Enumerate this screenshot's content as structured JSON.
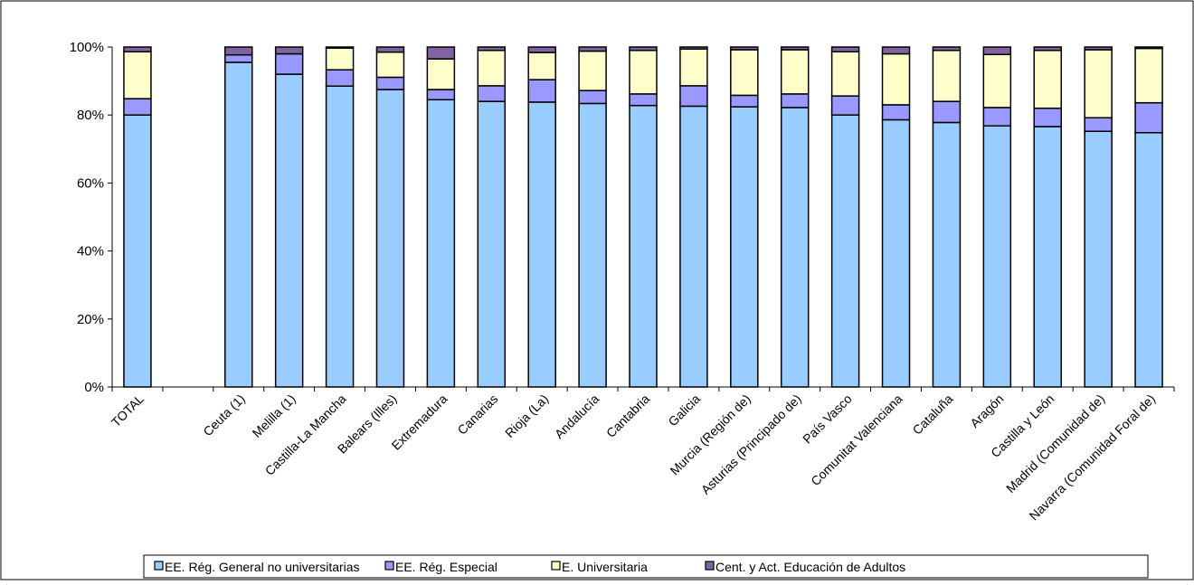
{
  "chart_data": {
    "type": "bar",
    "stacked": true,
    "percent_stacked": true,
    "categories": [
      "TOTAL",
      "",
      "Ceuta (1)",
      "Melilla (1)",
      "Castilla-La Mancha",
      "Balears (Illes)",
      "Extremadura",
      "Canarias",
      "Rioja (La)",
      "Andalucía",
      "Cantabria",
      "Galicia",
      "Murcia (Región de)",
      "Asturias (Principado de)",
      "País Vasco",
      "Comunitat Valenciana",
      "Cataluña",
      "Aragón",
      "Castilla y León",
      "Madrid (Comunidad de)",
      "Navarra (Comunidad Foral de)"
    ],
    "series": [
      {
        "name": "EE. Rég. General no universitarias",
        "color": "#99ccff",
        "values": [
          80,
          null,
          95.5,
          92,
          88.5,
          87.5,
          84.5,
          84,
          83.8,
          83.4,
          82.8,
          82.6,
          82.4,
          82.2,
          80,
          78.6,
          77.8,
          76.8,
          76.6,
          75.2,
          74.8
        ]
      },
      {
        "name": "EE. Rég. Especial",
        "color": "#9999ff",
        "values": [
          4.8,
          null,
          2.2,
          6,
          4.8,
          3.6,
          3,
          4.6,
          6.6,
          3.8,
          3.4,
          6,
          3.4,
          4,
          5.6,
          4.4,
          6.2,
          5.4,
          5.4,
          4,
          8.8
        ]
      },
      {
        "name": "E. Universitaria",
        "color": "#ffffcc",
        "values": [
          13.8,
          null,
          0,
          0,
          6.4,
          7.4,
          9,
          10.4,
          8,
          11.6,
          12.8,
          10.8,
          13.4,
          13,
          13,
          15,
          15,
          15.6,
          17,
          20,
          16
        ]
      },
      {
        "name": "Cent. y Act. Educación de Adultos",
        "color": "#8064a2",
        "values": [
          1.4,
          null,
          2.3,
          2,
          0.3,
          1.5,
          3.5,
          1,
          1.6,
          1.2,
          1,
          0.6,
          0.8,
          0.8,
          1.4,
          2,
          1,
          2.2,
          1,
          0.8,
          0.4
        ]
      }
    ],
    "y_ticks": [
      "0%",
      "20%",
      "40%",
      "60%",
      "80%",
      "100%"
    ],
    "ylim": [
      0,
      100
    ],
    "grid": false,
    "legend_position": "bottom"
  }
}
